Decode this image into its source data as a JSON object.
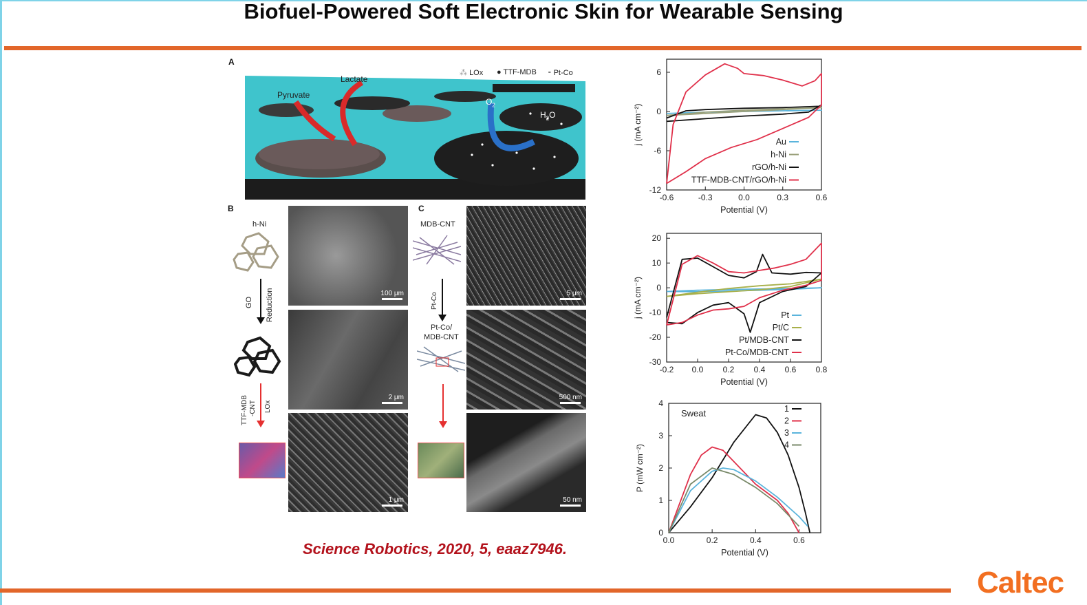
{
  "slide": {
    "title": "Biofuel-Powered Soft Electronic Skin for Wearable Sensing",
    "citation": "Science Robotics, 2020, 5, eaaz7946.",
    "logo_text": "Caltec",
    "accent_color": "#e2662a",
    "citation_color": "#b3121c"
  },
  "schematic": {
    "panel_label": "A",
    "legend": [
      "LOx",
      "TTF-MDB",
      "Pt-Co"
    ],
    "labels": {
      "lactate": "Lactate",
      "pyruvate": "Pyruvate",
      "o2": "O",
      "o2_sub": "2",
      "h2o": "H",
      "h2o_sub": "2",
      "h2o_tail": "O"
    }
  },
  "fabrication": {
    "panel_b": "B",
    "panel_c": "C",
    "b_top_label": "h-Ni",
    "b_step1_a": "GO",
    "b_step1_b": "Reduction",
    "b_step2_a": "TTF-MDB",
    "b_step2_b": "-CNT",
    "b_step2_c": "LOx",
    "c_top_label": "MDB-CNT",
    "c_step1": "Pt-Co",
    "c_mid_label_1": "Pt-Co/",
    "c_mid_label_2": "MDB-CNT",
    "sem_scales": [
      "100 μm",
      "2 μm",
      "1 μm",
      "5 μm",
      "500 nm",
      "50 nm"
    ]
  },
  "chart_data": [
    {
      "type": "line",
      "xlabel": "Potential (V)",
      "ylabel": "j (mA cm⁻²)",
      "xlim": [
        -0.6,
        0.6
      ],
      "ylim": [
        -12,
        8
      ],
      "xticks": [
        -0.6,
        -0.3,
        0,
        0.3,
        0.6
      ],
      "yticks": [
        6,
        0,
        -6,
        -12
      ],
      "legend_position": "bottom-right",
      "series": [
        {
          "name": "Au",
          "color": "#5ab4dc",
          "x": [
            -0.6,
            -0.3,
            0,
            0.3,
            0.6,
            0.3,
            0,
            -0.3,
            -0.6
          ],
          "y": [
            -0.3,
            -0.1,
            0.0,
            0.1,
            0.2,
            0.1,
            0.0,
            -0.1,
            -0.3
          ]
        },
        {
          "name": "h-Ni",
          "color": "#9aa07a",
          "x": [
            -0.6,
            -0.3,
            0,
            0.3,
            0.6,
            0.3,
            0,
            -0.3,
            -0.6
          ],
          "y": [
            -0.6,
            -0.1,
            0.2,
            0.4,
            0.6,
            0.3,
            0.0,
            -0.3,
            -0.6
          ]
        },
        {
          "name": "rGO/h-Ni",
          "color": "#111111",
          "x": [
            -0.6,
            -0.45,
            -0.3,
            0,
            0.3,
            0.58,
            0.6,
            0.5,
            0.3,
            0,
            -0.3,
            -0.6
          ],
          "y": [
            -1.0,
            0.1,
            0.3,
            0.5,
            0.6,
            0.8,
            1.0,
            -0.1,
            -0.4,
            -0.7,
            -1.1,
            -1.5
          ]
        },
        {
          "name": "TTF-MDB-CNT/rGO/h-Ni",
          "color": "#e0304a",
          "x": [
            -0.6,
            -0.55,
            -0.45,
            -0.3,
            -0.15,
            -0.05,
            0,
            0.15,
            0.3,
            0.45,
            0.55,
            0.6,
            0.6,
            0.5,
            0.3,
            0.1,
            -0.1,
            -0.3,
            -0.45,
            -0.6
          ],
          "y": [
            -11.0,
            -2.0,
            3.0,
            5.6,
            7.3,
            6.6,
            5.8,
            5.5,
            4.8,
            3.9,
            4.7,
            5.8,
            1.0,
            -0.9,
            -2.6,
            -4.3,
            -5.5,
            -7.2,
            -9.2,
            -11.0
          ]
        }
      ]
    },
    {
      "type": "line",
      "xlabel": "Potential (V)",
      "ylabel": "j (mA cm⁻²)",
      "xlim": [
        -0.2,
        0.8
      ],
      "ylim": [
        -30,
        22
      ],
      "xticks": [
        -0.2,
        0,
        0.2,
        0.4,
        0.6,
        0.8
      ],
      "yticks": [
        20,
        10,
        0,
        -10,
        -20,
        -30
      ],
      "legend_position": "bottom-right",
      "series": [
        {
          "name": "Pt",
          "color": "#5ab4dc",
          "x": [
            -0.2,
            0,
            0.2,
            0.4,
            0.6,
            0.8,
            0.6,
            0.4,
            0.2,
            0,
            -0.2
          ],
          "y": [
            -1.5,
            -1.0,
            -0.7,
            -0.5,
            -0.3,
            0.0,
            -0.6,
            -1.0,
            -1.3,
            -1.6,
            -1.5
          ]
        },
        {
          "name": "Pt/C",
          "color": "#a8b04a",
          "x": [
            -0.2,
            0,
            0.2,
            0.4,
            0.6,
            0.8,
            0.6,
            0.4,
            0.2,
            0,
            -0.2
          ],
          "y": [
            -3.5,
            -1.8,
            -0.3,
            0.8,
            1.6,
            3.5,
            0.5,
            -0.8,
            -1.6,
            -2.4,
            -3.5
          ]
        },
        {
          "name": "Pt/MDB-CNT",
          "color": "#111111",
          "x": [
            -0.2,
            -0.1,
            0,
            0.1,
            0.2,
            0.3,
            0.38,
            0.42,
            0.48,
            0.6,
            0.7,
            0.8,
            0.7,
            0.55,
            0.4,
            0.34,
            0.3,
            0.2,
            0.1,
            0,
            -0.1,
            -0.2
          ],
          "y": [
            -12,
            11.5,
            12.0,
            8.5,
            5.0,
            4.0,
            6.5,
            13.5,
            6.0,
            5.5,
            6.2,
            6.0,
            0.5,
            -1.5,
            -6.0,
            -18.0,
            -10.5,
            -6.0,
            -7.0,
            -10.0,
            -14.5,
            -14.0
          ]
        },
        {
          "name": "Pt-Co/MDB-CNT",
          "color": "#e0304a",
          "x": [
            -0.2,
            -0.1,
            0,
            0.1,
            0.2,
            0.3,
            0.4,
            0.5,
            0.6,
            0.7,
            0.8,
            0.8,
            0.7,
            0.55,
            0.4,
            0.3,
            0.2,
            0.1,
            0,
            -0.1,
            -0.2
          ],
          "y": [
            -15,
            9.5,
            13.0,
            10.0,
            6.5,
            6.0,
            7.0,
            8.0,
            9.5,
            11.5,
            18.0,
            3.0,
            1.0,
            -1.0,
            -4.0,
            -7.5,
            -8.5,
            -9.0,
            -11.0,
            -14.0,
            -15.0
          ]
        }
      ]
    },
    {
      "type": "line",
      "title": "Sweat",
      "xlabel": "Potential (V)",
      "ylabel": "P (mW cm⁻²)",
      "xlim": [
        0,
        0.7
      ],
      "ylim": [
        0,
        4.0
      ],
      "xticks": [
        0,
        0.2,
        0.4,
        0.6
      ],
      "yticks": [
        4.0,
        3.0,
        2.0,
        1.0,
        0.0
      ],
      "legend_position": "top-right",
      "series": [
        {
          "name": "1",
          "color": "#111111",
          "x": [
            0,
            0.1,
            0.2,
            0.3,
            0.4,
            0.45,
            0.5,
            0.55,
            0.6,
            0.63,
            0.65
          ],
          "y": [
            0,
            0.8,
            1.7,
            2.8,
            3.65,
            3.55,
            3.1,
            2.4,
            1.4,
            0.6,
            0
          ]
        },
        {
          "name": "2",
          "color": "#e0304a",
          "x": [
            0,
            0.05,
            0.1,
            0.15,
            0.2,
            0.25,
            0.3,
            0.4,
            0.5,
            0.55,
            0.6
          ],
          "y": [
            0,
            0.9,
            1.8,
            2.4,
            2.65,
            2.55,
            2.2,
            1.5,
            1.0,
            0.6,
            0
          ]
        },
        {
          "name": "3",
          "color": "#5ab4dc",
          "x": [
            0,
            0.1,
            0.2,
            0.25,
            0.3,
            0.4,
            0.5,
            0.6,
            0.64
          ],
          "y": [
            0,
            1.3,
            1.9,
            2.0,
            1.95,
            1.6,
            1.1,
            0.5,
            0.2
          ]
        },
        {
          "name": "4",
          "color": "#7a8a6a",
          "x": [
            0,
            0.1,
            0.2,
            0.3,
            0.4,
            0.5,
            0.6
          ],
          "y": [
            0,
            1.5,
            2.0,
            1.8,
            1.4,
            0.9,
            0.2
          ]
        }
      ]
    }
  ]
}
